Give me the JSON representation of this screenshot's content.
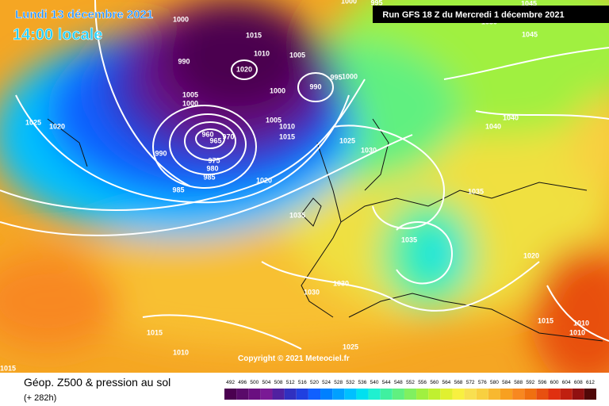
{
  "header": {
    "date": "Lundi 13 décembre 2021",
    "time": "14:00 locale",
    "run": "Run GFS 18 Z du Mercredi 1 décembre 2021"
  },
  "map": {
    "isobar_labels": [
      "1000",
      "1015",
      "1010",
      "1005",
      "1020",
      "990",
      "990",
      "995",
      "1000",
      "1000",
      "1005",
      "1000",
      "1025",
      "1020",
      "960",
      "965",
      "970",
      "975",
      "980",
      "985",
      "990",
      "985",
      "1005",
      "1010",
      "1015",
      "1020",
      "1025",
      "1030",
      "1035",
      "1035",
      "1035",
      "1040",
      "1040",
      "1045",
      "1045",
      "1030",
      "1020",
      "1030",
      "1030",
      "1015",
      "1015",
      "1010",
      "1010",
      "1025",
      "1010",
      "1015",
      "995",
      "1000"
    ],
    "copyright": "Copyright © 2021 Meteociel.fr"
  },
  "footer": {
    "title": "Géop. Z500 & pression au sol",
    "lead": "(+ 282h)"
  },
  "scale": {
    "labels": [
      492,
      496,
      500,
      504,
      508,
      512,
      516,
      520,
      524,
      528,
      532,
      536,
      540,
      544,
      548,
      552,
      556,
      560,
      564,
      568,
      572,
      576,
      580,
      584,
      588,
      592,
      596,
      600,
      604,
      608,
      612
    ],
    "colors": [
      "#4b0050",
      "#5a0a6a",
      "#6a0f80",
      "#7a1a95",
      "#5020a0",
      "#3030c0",
      "#2040e0",
      "#1060ff",
      "#0080ff",
      "#00a0ff",
      "#00c0ff",
      "#00e0f0",
      "#20f0d0",
      "#40f0a0",
      "#60f080",
      "#80f060",
      "#a0f040",
      "#c0f030",
      "#e0f030",
      "#f8f040",
      "#f8e050",
      "#f8d040",
      "#f8b830",
      "#f8a020",
      "#f88820",
      "#f07010",
      "#e85010",
      "#e03010",
      "#c02010",
      "#901010",
      "#500808"
    ]
  }
}
